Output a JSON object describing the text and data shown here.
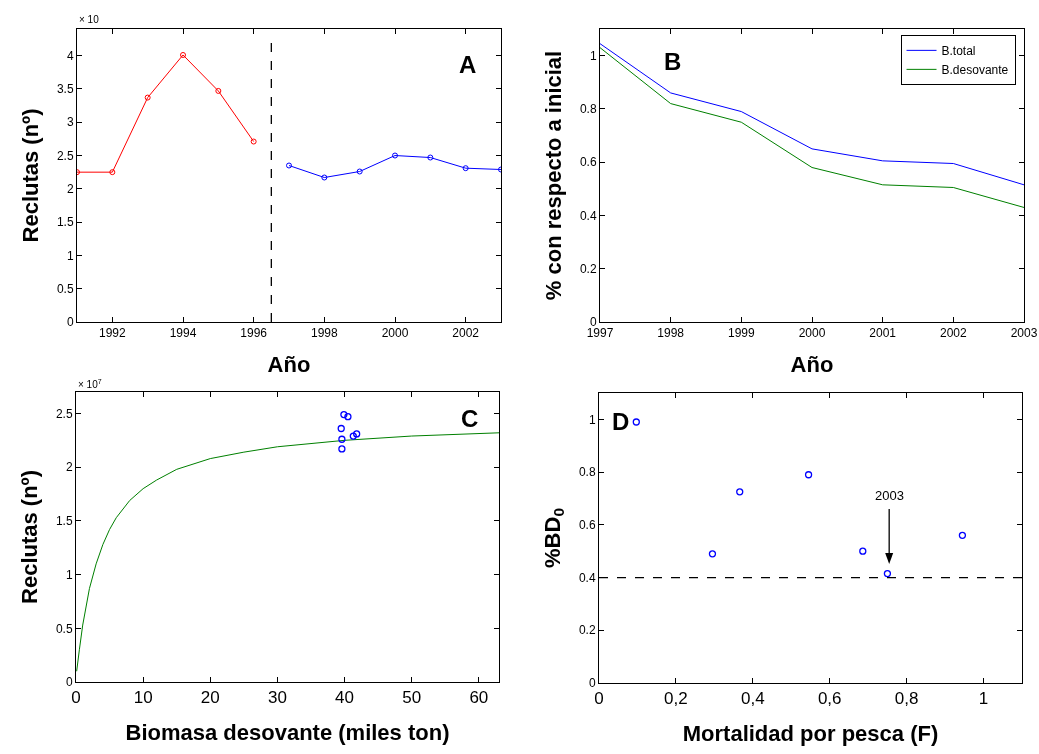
{
  "chart_data": [
    {
      "type": "line",
      "xlabel": "Año",
      "ylabel": "Reclutas (nº)",
      "annotations": [
        "× 10",
        "A"
      ],
      "marker": "circle",
      "grid": false,
      "xlim": [
        1991,
        2003
      ],
      "xticks": [
        1992,
        1994,
        1996,
        1998,
        2000,
        2002
      ],
      "ylim": [
        0,
        4.4
      ],
      "yticks": [
        0,
        0.5,
        1,
        1.5,
        2,
        2.5,
        3,
        3.5,
        4
      ],
      "ref_lines": [
        {
          "axis": "x",
          "value": 1996.5,
          "line_style": "dashed",
          "color": "#000000"
        }
      ],
      "series": [
        {
          "color": "#ff0000",
          "x": [
            1991,
            1992,
            1993,
            1994,
            1995,
            1996
          ],
          "values": [
            2.25,
            2.25,
            3.37,
            4.01,
            3.47,
            2.71
          ]
        },
        {
          "color": "#0000ff",
          "x": [
            1997,
            1998,
            1999,
            2000,
            2001,
            2002,
            2003
          ],
          "values": [
            2.35,
            2.17,
            2.26,
            2.5,
            2.47,
            2.31,
            2.29
          ]
        }
      ]
    },
    {
      "type": "line",
      "xlabel": "Año",
      "ylabel": "% con respecto a inicial",
      "annotations": [
        "B"
      ],
      "grid": false,
      "legend": "top right",
      "xlim": [
        1997,
        2003
      ],
      "xticks": [
        1997,
        1998,
        1999,
        2000,
        2001,
        2002,
        2003
      ],
      "ylim": [
        0,
        1.1
      ],
      "yticks": [
        0,
        0.2,
        0.4,
        0.6,
        0.8,
        1
      ],
      "x": [
        1997,
        1998,
        1999,
        2000,
        2001,
        2002,
        2003
      ],
      "series": [
        {
          "name": "B.total",
          "color": "#0000ff",
          "values": [
            1.045,
            0.86,
            0.79,
            0.65,
            0.605,
            0.595,
            0.515
          ]
        },
        {
          "name": "B.desovante",
          "color": "#008000",
          "values": [
            1.03,
            0.82,
            0.75,
            0.58,
            0.515,
            0.505,
            0.43
          ]
        }
      ]
    },
    {
      "type": "line",
      "xlabel": "Biomasa desovante (miles ton)",
      "ylabel": "Reclutas (nº)",
      "annotations": [
        "× 10$^{7}$",
        "C"
      ],
      "grid": false,
      "xlim": [
        0,
        63
      ],
      "xticks": [
        0,
        10,
        20,
        30,
        40,
        50,
        60
      ],
      "ylim": [
        0,
        2.7
      ],
      "yticks": [
        0,
        0.5,
        1,
        1.5,
        2,
        2.5
      ],
      "series": [
        {
          "color": "#008000",
          "x": [
            0.1,
            0.5,
            1,
            2,
            3,
            4,
            5,
            6,
            8,
            10,
            12,
            15,
            20,
            25,
            30,
            35,
            40,
            50,
            63
          ],
          "values": [
            0.1,
            0.3,
            0.53,
            0.87,
            1.1,
            1.28,
            1.42,
            1.53,
            1.69,
            1.8,
            1.88,
            1.98,
            2.08,
            2.14,
            2.19,
            2.22,
            2.25,
            2.29,
            2.32
          ]
        },
        {
          "type": "scatter",
          "color": "#0000ff",
          "x": [
            39.6,
            39.5,
            39.6,
            39.9,
            40.5,
            41.3,
            41.8
          ],
          "values": [
            2.17,
            2.36,
            2.26,
            2.49,
            2.47,
            2.29,
            2.31
          ]
        }
      ]
    },
    {
      "type": "scatter",
      "xlabel": "Mortalidad por pesca (F)",
      "ylabel": "%BD$_{0}$",
      "grid": false,
      "marker": "circle",
      "annotations": [
        "D",
        "2003"
      ],
      "xlim": [
        0,
        1.1
      ],
      "xticks": [
        0,
        {
          "value": 0.2,
          "label": "0,2"
        },
        {
          "value": 0.4,
          "label": "0,4"
        },
        {
          "value": 0.6,
          "label": "0,6"
        },
        {
          "value": 0.8,
          "label": "0,8"
        },
        1
      ],
      "ylim": [
        0,
        1.1
      ],
      "yticks": [
        0,
        0.2,
        0.4,
        0.6,
        0.8,
        1
      ],
      "ref_lines": [
        {
          "axis": "y",
          "value": 0.4,
          "line_style": "dashed",
          "color": "#000000"
        }
      ],
      "series": [
        {
          "color": "#0000ff",
          "x": [
            0.097,
            0.295,
            0.366,
            0.545,
            0.686,
            0.75,
            0.945
          ],
          "values": [
            0.99,
            0.49,
            0.725,
            0.79,
            0.5,
            0.415,
            0.56
          ]
        }
      ]
    }
  ]
}
